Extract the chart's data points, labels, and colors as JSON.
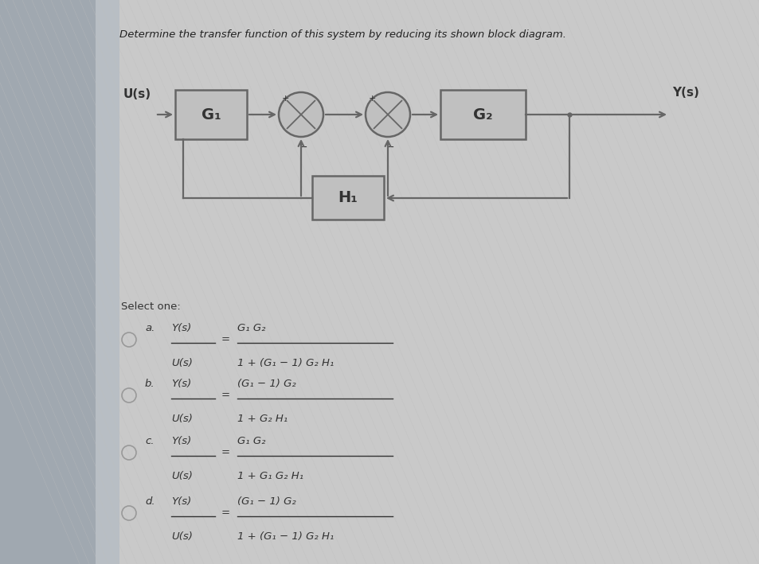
{
  "title": "Determine the transfer function of this system by reducing its shown block diagram.",
  "bg_color": "#c8c8c8",
  "panel_color": "#c8c8c8",
  "diagram": {
    "U_label": "U(s)",
    "Y_label": "Y(s)",
    "G1_label": "G₁",
    "G2_label": "G₂",
    "H1_label": "H₁",
    "block_facecolor": "#c0c0c0",
    "block_edgecolor": "#666666",
    "line_color": "#666666",
    "text_color": "#333333"
  },
  "select_one": "Select one:",
  "choices": [
    {
      "label": "a.",
      "lhs_num": "Y(s)",
      "lhs_den": "U(s)",
      "rhs_num": "G₁ G₂",
      "rhs_den": "1 + (G₁ − 1) G₂ H₁"
    },
    {
      "label": "b.",
      "lhs_num": "Y(s)",
      "lhs_den": "U(s)",
      "rhs_num": "(G₁ − 1) G₂",
      "rhs_den": "1 + G₂ H₁"
    },
    {
      "label": "c.",
      "lhs_num": "Y(s)",
      "lhs_den": "U(s)",
      "rhs_num": "G₁ G₂",
      "rhs_den": "1 + G₁ G₂ H₁"
    },
    {
      "label": "d.",
      "lhs_num": "Y(s)",
      "lhs_den": "U(s)",
      "rhs_num": "(G₁ − 1) G₂",
      "rhs_den": "1 + (G₁ − 1) G₂ H₁"
    }
  ],
  "text_color": "#333333",
  "radio_color": "#888888",
  "left_bar_color": "#5a6a7a",
  "shadow_color": "#999999"
}
